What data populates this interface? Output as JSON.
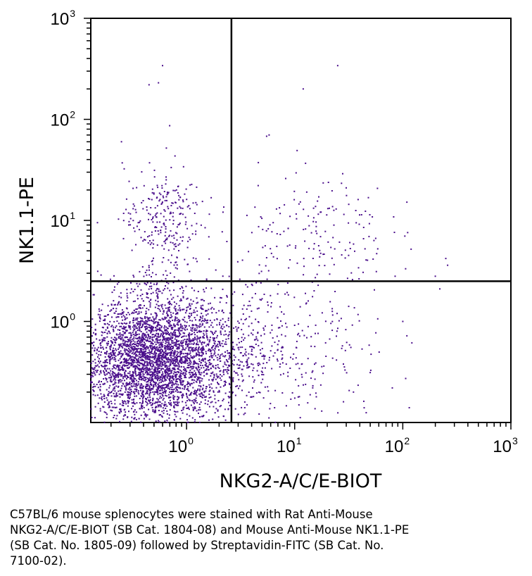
{
  "chart_data": {
    "type": "scatter",
    "xlabel": "NKG2-A/C/E-BIOT",
    "ylabel": "NK1.1-PE",
    "x_scale": "log",
    "y_scale": "log",
    "xlim": [
      0.13,
      1000
    ],
    "ylim": [
      0.1,
      1000
    ],
    "x_ticks": [
      {
        "base": "10",
        "exp": "0",
        "value": 1
      },
      {
        "base": "10",
        "exp": "1",
        "value": 10
      },
      {
        "base": "10",
        "exp": "2",
        "value": 100
      },
      {
        "base": "10",
        "exp": "3",
        "value": 1000
      }
    ],
    "y_ticks": [
      {
        "base": "10",
        "exp": "0",
        "value": 1
      },
      {
        "base": "10",
        "exp": "1",
        "value": 10
      },
      {
        "base": "10",
        "exp": "2",
        "value": 100
      },
      {
        "base": "10",
        "exp": "3",
        "value": 1000
      }
    ],
    "quadrant_gates": {
      "x": 2.6,
      "y": 2.5
    },
    "point_color": "#4b0f8c",
    "populations": [
      {
        "center": [
          0.5,
          0.4
        ],
        "spread": [
          0.33,
          0.3
        ],
        "count": 3000
      },
      {
        "center": [
          0.6,
          0.45
        ],
        "spread": [
          0.45,
          0.28
        ],
        "count": 900
      },
      {
        "center": [
          0.6,
          11
        ],
        "spread": [
          0.18,
          0.25
        ],
        "count": 220
      },
      {
        "center": [
          0.6,
          2.5
        ],
        "spread": [
          0.15,
          0.4
        ],
        "count": 140
      },
      {
        "center": [
          15,
          8
        ],
        "spread": [
          0.35,
          0.32
        ],
        "count": 170
      },
      {
        "center": [
          8,
          0.5
        ],
        "spread": [
          0.5,
          0.4
        ],
        "count": 260
      },
      {
        "center": [
          4,
          0.5
        ],
        "spread": [
          0.25,
          0.35
        ],
        "count": 120
      }
    ],
    "outliers": [
      [
        0.6,
        340
      ],
      [
        0.45,
        220
      ],
      [
        0.55,
        230
      ],
      [
        0.25,
        60
      ],
      [
        0.65,
        52
      ],
      [
        25,
        340
      ],
      [
        12,
        200
      ],
      [
        5.5,
        68
      ],
      [
        5.8,
        70
      ],
      [
        0.15,
        9.5
      ],
      [
        200,
        2.8
      ],
      [
        220,
        2.1
      ],
      [
        250,
        4.2
      ],
      [
        260,
        3.6
      ],
      [
        85,
        2.8
      ],
      [
        80,
        0.22
      ],
      [
        100,
        1.0
      ],
      [
        35,
        0.2
      ]
    ]
  },
  "caption": [
    "C57BL/6 mouse splenocytes were stained with Rat Anti-Mouse",
    "NKG2-A/C/E-BIOT (SB Cat. 1804-08) and Mouse Anti-Mouse NK1.1-PE",
    "(SB Cat. No. 1805-09) followed by Streptavidin-FITC (SB Cat. No.",
    "7100-02)."
  ]
}
